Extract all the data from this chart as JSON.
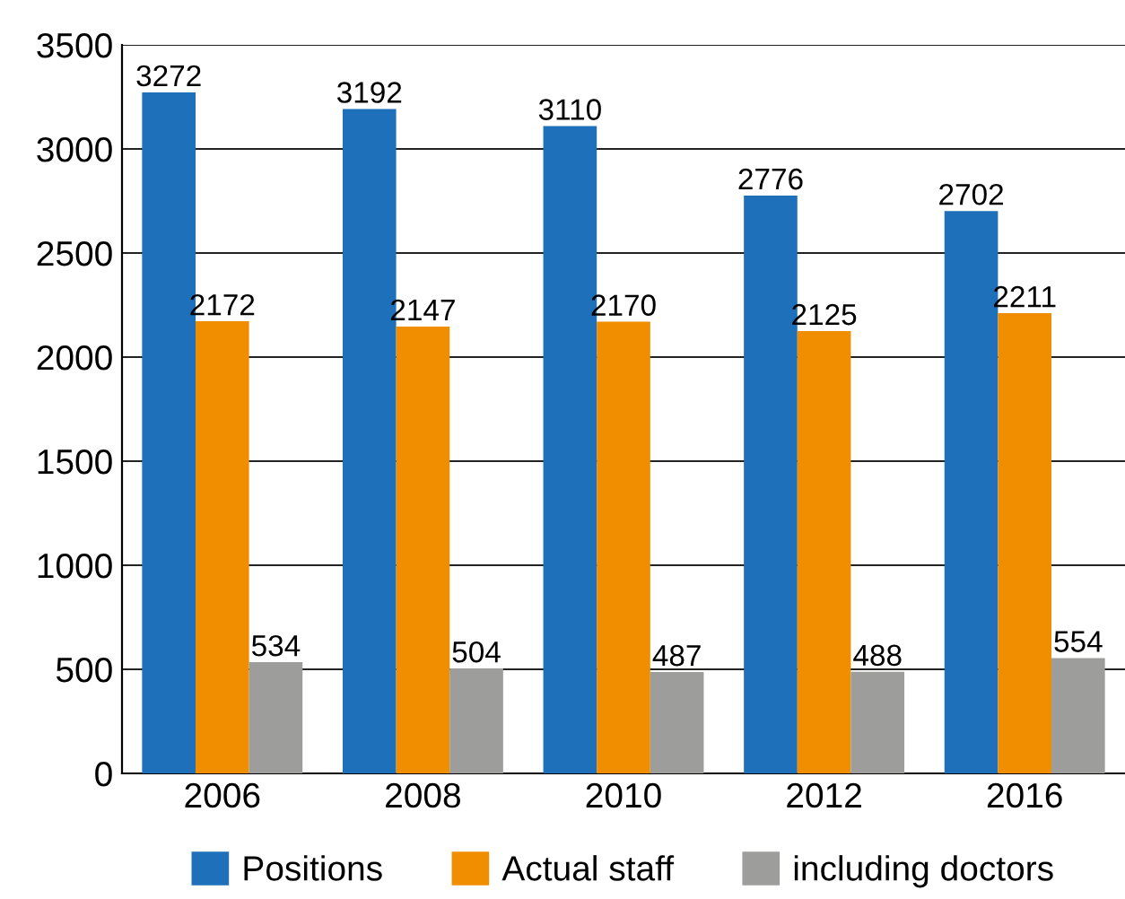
{
  "chart_data": {
    "type": "bar",
    "categories": [
      "2006",
      "2008",
      "2010",
      "2012",
      "2016"
    ],
    "series": [
      {
        "name": "Positions",
        "color": "#1f70bb",
        "values": [
          3272,
          3192,
          3110,
          2776,
          2702
        ]
      },
      {
        "name": "Actual staff",
        "color": "#f18e00",
        "values": [
          2172,
          2147,
          2170,
          2125,
          2211
        ]
      },
      {
        "name": "including doctors",
        "color": "#9d9d9c",
        "values": [
          534,
          504,
          487,
          488,
          554
        ]
      }
    ],
    "ylim": [
      0,
      3500
    ],
    "yticks": [
      0,
      500,
      1000,
      1500,
      2000,
      2500,
      3000,
      3500
    ],
    "grid": "y",
    "legend": "bottom",
    "data_labels": true
  }
}
